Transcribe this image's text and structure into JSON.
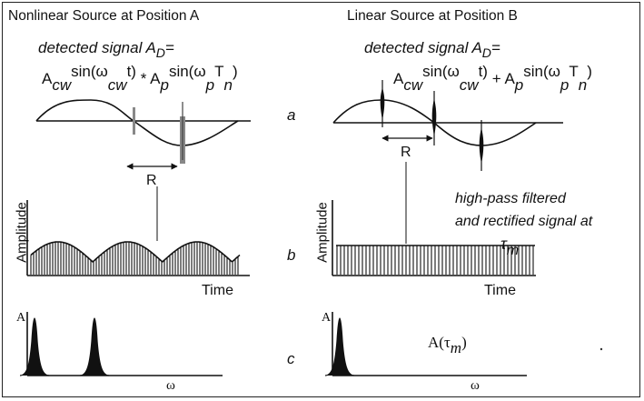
{
  "left_panel": {
    "title": "Nonlinear Source at Position A",
    "detected_label": "detected signal A",
    "detected_sub": "D",
    "detected_eq": "=",
    "eq_a": "A",
    "eq_cw": "cw",
    "eq_sin1": "sin(ω",
    "eq_cw2": "cw",
    "eq_t1": "t)",
    "eq_op": "*",
    "eq_a2": "A",
    "eq_p": "p",
    "eq_sin2": "sin(ω",
    "eq_p2": "p",
    "eq_T": "T",
    "eq_n": "n",
    "eq_close": ")",
    "r_label": "R",
    "amp_label": "Amplitude",
    "time_label": "Time",
    "a_axis": "A",
    "omega": "ω"
  },
  "right_panel": {
    "title": "Linear Source at Position B",
    "detected_label": "detected signal A",
    "detected_sub": "D",
    "detected_eq": "=",
    "eq_a": "A",
    "eq_cw": "cw",
    "eq_sin1": "sin(ω",
    "eq_cw2": "cw",
    "eq_t1": "t)",
    "eq_op": "+",
    "eq_a2": "A",
    "eq_p": "p",
    "eq_sin2": "sin(ω",
    "eq_p2": "p",
    "eq_T": "T",
    "eq_n": "n",
    "eq_close": ")",
    "r_label": "R",
    "amp_label": "Amplitude",
    "time_label": "Time",
    "a_axis": "A",
    "omega": "ω",
    "note_line1": "high-pass filtered",
    "note_line2": "and rectified signal at",
    "note_tau": "τ",
    "note_m": "m",
    "a_tau_prefix": "A(τ",
    "a_tau_sub": "m",
    "a_tau_close": ")"
  },
  "row_labels": {
    "a": "a",
    "b": "b",
    "c": "c"
  },
  "colors": {
    "ink": "#111111",
    "gray_marker": "#888888",
    "background": "#ffffff"
  }
}
